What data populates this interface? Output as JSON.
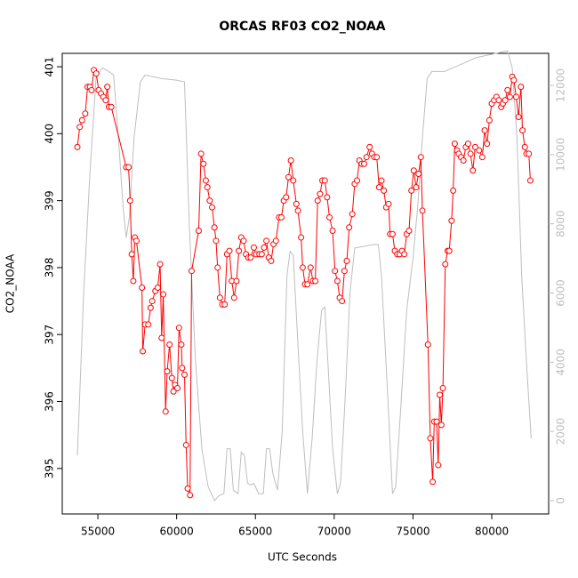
{
  "chart_data": {
    "type": "line",
    "title": "ORCAS RF03 CO2_NOAA",
    "x_label": "UTC Seconds",
    "y_label": "CO2_NOAA",
    "xlim": [
      52740,
      83610
    ],
    "xticks": [
      55000,
      60000,
      65000,
      70000,
      75000,
      80000
    ],
    "ylim": [
      394.32,
      401.2
    ],
    "yticks": [
      395,
      396,
      397,
      398,
      399,
      400,
      401
    ],
    "y2lim": [
      -386,
      12925
    ],
    "y2ticks": [
      0,
      2000,
      4000,
      6000,
      8000,
      10000,
      12000
    ],
    "y2_color": "#bebebe",
    "series": [
      {
        "color": "#ff0000",
        "marker": "circle",
        "x": [
          53700,
          53850,
          54000,
          54200,
          54350,
          54500,
          54600,
          54750,
          54900,
          55050,
          55200,
          55350,
          55500,
          55600,
          55700,
          55850,
          56800,
          56950,
          57050,
          57150,
          57250,
          57350,
          57450,
          57800,
          57850,
          58000,
          58200,
          58350,
          58450,
          58650,
          58800,
          58950,
          59050,
          59150,
          59300,
          59400,
          59550,
          59700,
          59800,
          59900,
          60050,
          60150,
          60300,
          60350,
          60500,
          60600,
          60700,
          60850,
          60950,
          61400,
          61550,
          61700,
          61850,
          61950,
          62100,
          62250,
          62400,
          62500,
          62600,
          62750,
          62900,
          63050,
          63200,
          63350,
          63500,
          63650,
          63800,
          63950,
          64100,
          64250,
          64400,
          64550,
          64700,
          64900,
          65050,
          65250,
          65400,
          65550,
          65700,
          65850,
          66000,
          66150,
          66300,
          66500,
          66650,
          66800,
          66950,
          67100,
          67250,
          67400,
          67600,
          67700,
          67900,
          68000,
          68150,
          68300,
          68500,
          68650,
          68800,
          68950,
          69100,
          69250,
          69400,
          69550,
          69700,
          69900,
          70050,
          70200,
          70350,
          70500,
          70650,
          70800,
          70950,
          71150,
          71300,
          71450,
          71600,
          71750,
          71900,
          72050,
          72250,
          72400,
          72550,
          72700,
          72850,
          73000,
          73150,
          73300,
          73450,
          73550,
          73700,
          73850,
          74000,
          74150,
          74300,
          74450,
          74600,
          74750,
          74900,
          75050,
          75200,
          75350,
          75500,
          75600,
          75950,
          76100,
          76250,
          76350,
          76500,
          76600,
          76700,
          76800,
          76900,
          77050,
          77200,
          77300,
          77450,
          77550,
          77650,
          77800,
          77900,
          78050,
          78200,
          78350,
          78500,
          78650,
          78800,
          78950,
          79200,
          79400,
          79550,
          79700,
          79850,
          80000,
          80150,
          80300,
          80450,
          80600,
          80700,
          80850,
          81000,
          81150,
          81300,
          81400,
          81550,
          81700,
          81850,
          81950,
          82100,
          82200,
          82350,
          82450
        ],
        "values": [
          399.8,
          400.1,
          400.2,
          400.3,
          400.7,
          400.7,
          400.65,
          400.95,
          400.9,
          400.65,
          400.6,
          400.55,
          400.5,
          400.7,
          400.4,
          400.4,
          399.5,
          399.5,
          399.0,
          398.2,
          397.8,
          398.45,
          398.4,
          397.7,
          396.75,
          397.15,
          397.15,
          397.4,
          397.5,
          397.65,
          397.7,
          398.05,
          396.95,
          397.6,
          395.85,
          396.45,
          396.85,
          396.35,
          396.15,
          396.25,
          396.2,
          397.1,
          396.85,
          396.5,
          396.4,
          395.35,
          394.7,
          394.6,
          397.95,
          398.55,
          399.7,
          399.55,
          399.3,
          399.2,
          399.0,
          398.9,
          398.6,
          398.4,
          398.0,
          397.55,
          397.45,
          397.45,
          398.2,
          398.25,
          397.8,
          397.55,
          397.8,
          398.25,
          398.45,
          398.4,
          398.2,
          398.15,
          398.15,
          398.3,
          398.2,
          398.2,
          398.2,
          398.3,
          398.4,
          398.15,
          398.1,
          398.35,
          398.4,
          398.75,
          398.75,
          399.0,
          399.05,
          399.35,
          399.6,
          399.3,
          398.95,
          398.85,
          398.45,
          398.0,
          397.75,
          397.75,
          398.0,
          397.8,
          397.8,
          399.0,
          399.1,
          399.3,
          399.3,
          399.05,
          398.75,
          398.55,
          397.95,
          397.8,
          397.55,
          397.5,
          397.95,
          398.1,
          398.6,
          398.8,
          399.25,
          399.3,
          399.6,
          399.55,
          399.55,
          399.65,
          399.8,
          399.7,
          399.65,
          399.65,
          399.2,
          399.3,
          399.15,
          398.9,
          398.95,
          398.5,
          398.5,
          398.25,
          398.2,
          398.2,
          398.25,
          398.2,
          398.5,
          398.55,
          399.15,
          399.45,
          399.2,
          399.4,
          399.65,
          398.85,
          396.85,
          395.45,
          394.8,
          395.7,
          395.7,
          395.05,
          396.1,
          395.65,
          396.2,
          398.05,
          398.25,
          398.25,
          398.7,
          399.15,
          399.85,
          399.75,
          399.7,
          399.65,
          399.6,
          399.8,
          399.85,
          399.7,
          399.45,
          399.8,
          399.75,
          399.65,
          400.05,
          399.85,
          400.2,
          400.45,
          400.5,
          400.55,
          400.5,
          400.4,
          400.45,
          400.5,
          400.65,
          400.55,
          400.85,
          400.8,
          400.55,
          400.25,
          400.7,
          400.05,
          399.8,
          399.7,
          399.7,
          399.3
        ]
      },
      {
        "color": "#bebebe",
        "axis": "y2",
        "x": [
          53700,
          54100,
          54500,
          54900,
          55300,
          55700,
          56000,
          56300,
          56600,
          56800,
          57000,
          57300,
          57700,
          58000,
          59000,
          60000,
          60500,
          60800,
          61200,
          61600,
          62000,
          62400,
          62700,
          63000,
          63200,
          63400,
          63600,
          63900,
          64100,
          64300,
          64500,
          64700,
          64900,
          65200,
          65500,
          65700,
          65900,
          66100,
          66400,
          66700,
          67000,
          67200,
          67400,
          67700,
          68000,
          68300,
          68600,
          68900,
          69200,
          69400,
          69600,
          69900,
          70200,
          70400,
          70700,
          71000,
          71300,
          72500,
          72800,
          73000,
          73400,
          73700,
          73900,
          74200,
          74600,
          75000,
          75300,
          75600,
          75900,
          76200,
          77000,
          78000,
          79000,
          80000,
          81000,
          81300,
          81600,
          81900,
          82200,
          82500
        ],
        "values": [
          1300,
          6000,
          9500,
          12300,
          12500,
          12400,
          12300,
          10500,
          8500,
          7600,
          8200,
          10500,
          12100,
          12300,
          12200,
          12150,
          12100,
          8000,
          4000,
          1500,
          400,
          0,
          150,
          200,
          1500,
          1500,
          300,
          200,
          1400,
          1300,
          500,
          450,
          500,
          200,
          200,
          1500,
          1500,
          800,
          300,
          2000,
          6500,
          7200,
          7100,
          4500,
          2000,
          200,
          1800,
          4000,
          5500,
          5600,
          4000,
          1500,
          200,
          500,
          3000,
          6000,
          7300,
          7400,
          7400,
          6500,
          3000,
          200,
          400,
          2500,
          5500,
          7000,
          8500,
          10500,
          12200,
          12400,
          12400,
          12600,
          12800,
          12900,
          13000,
          12500,
          10500,
          6500,
          4000,
          1800
        ]
      }
    ]
  }
}
